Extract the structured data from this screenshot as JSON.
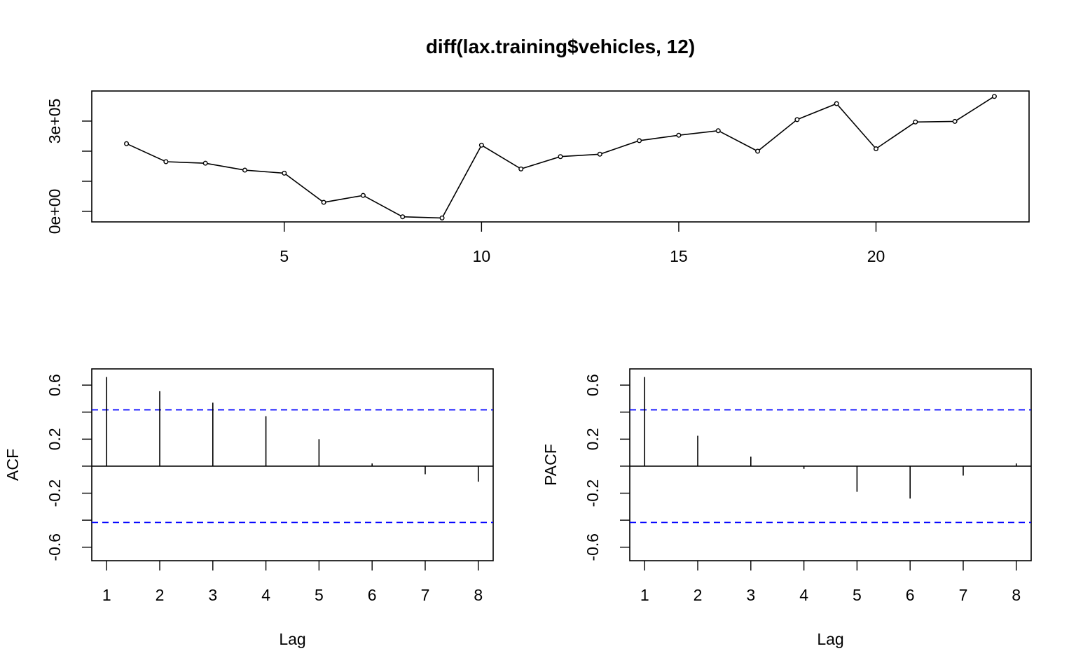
{
  "chart_data": [
    {
      "type": "line",
      "title": "diff(lax.training$vehicles, 12)",
      "xlabel": "",
      "ylabel": "",
      "xlim": [
        0.12,
        23.88
      ],
      "ylim": [
        -35000,
        400000
      ],
      "x_ticks": [
        5,
        10,
        15,
        20
      ],
      "x_tick_labels": [
        "5",
        "10",
        "15",
        "20"
      ],
      "y_ticks": [
        0,
        100000,
        200000,
        300000
      ],
      "y_tick_labels": [
        "0e+00",
        "",
        "",
        "3e+05"
      ],
      "grid": false,
      "markers": "open-circle",
      "series": [
        {
          "x": [
            1,
            2,
            3,
            4,
            5,
            6,
            7,
            8,
            9,
            10,
            11,
            12,
            13,
            14,
            15,
            16,
            17,
            18,
            19,
            20,
            21,
            22,
            23
          ],
          "values": [
            225000,
            165000,
            160000,
            137000,
            127000,
            30000,
            53000,
            -18000,
            -22000,
            220000,
            141000,
            182000,
            190000,
            235000,
            253000,
            268000,
            200000,
            305000,
            358000,
            208000,
            297000,
            299000,
            382000
          ]
        }
      ]
    },
    {
      "type": "bar",
      "title": "",
      "xlabel": "Lag",
      "ylabel": "ACF",
      "xlim": [
        0.72,
        8.28
      ],
      "ylim": [
        -0.7,
        0.72
      ],
      "x_ticks": [
        1,
        2,
        3,
        4,
        5,
        6,
        7,
        8
      ],
      "x_tick_labels": [
        "1",
        "2",
        "3",
        "4",
        "5",
        "6",
        "7",
        "8"
      ],
      "y_ticks": [
        -0.6,
        -0.4,
        -0.2,
        0,
        0.2,
        0.4,
        0.6
      ],
      "y_tick_labels": [
        "-0.6",
        "",
        "-0.2",
        "",
        "0.2",
        "",
        "0.6"
      ],
      "confidence_band": [
        -0.417,
        0.417
      ],
      "band_color": "#0000ff",
      "series": [
        {
          "lags": [
            1,
            2,
            3,
            4,
            5,
            6,
            7,
            8
          ],
          "values": [
            0.66,
            0.555,
            0.47,
            0.37,
            0.2,
            0.02,
            -0.06,
            -0.115
          ]
        }
      ]
    },
    {
      "type": "bar",
      "title": "",
      "xlabel": "Lag",
      "ylabel": "PACF",
      "xlim": [
        0.72,
        8.28
      ],
      "ylim": [
        -0.7,
        0.72
      ],
      "x_ticks": [
        1,
        2,
        3,
        4,
        5,
        6,
        7,
        8
      ],
      "x_tick_labels": [
        "1",
        "2",
        "3",
        "4",
        "5",
        "6",
        "7",
        "8"
      ],
      "y_ticks": [
        -0.6,
        -0.4,
        -0.2,
        0,
        0.2,
        0.4,
        0.6
      ],
      "y_tick_labels": [
        "-0.6",
        "",
        "-0.2",
        "",
        "0.2",
        "",
        "0.6"
      ],
      "confidence_band": [
        -0.417,
        0.417
      ],
      "band_color": "#0000ff",
      "series": [
        {
          "lags": [
            1,
            2,
            3,
            4,
            5,
            6,
            7,
            8
          ],
          "values": [
            0.66,
            0.225,
            0.07,
            -0.02,
            -0.19,
            -0.24,
            -0.07,
            0.02
          ]
        }
      ]
    }
  ]
}
